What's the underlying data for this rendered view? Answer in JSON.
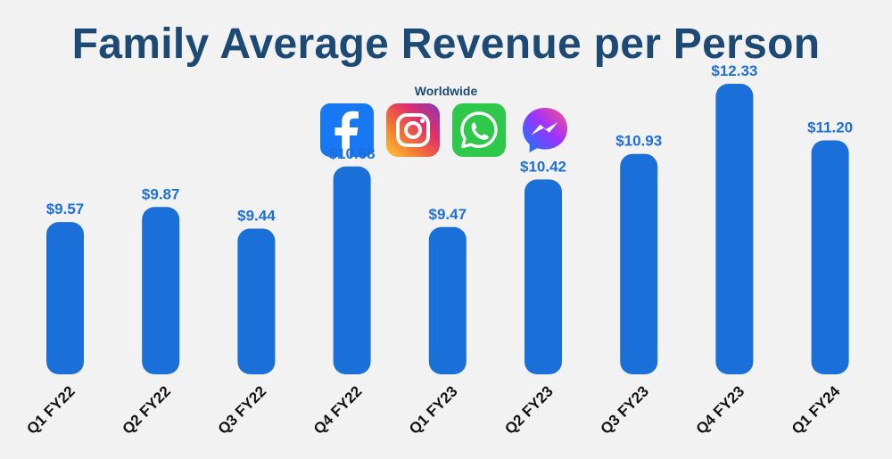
{
  "colors": {
    "bar": "#1a6fd8",
    "value_label": "#1e6fd9",
    "title": "#1c4a74"
  },
  "logos": [
    {
      "icon": "facebook-icon"
    },
    {
      "icon": "instagram-icon"
    },
    {
      "icon": "whatsapp-icon"
    },
    {
      "icon": "messenger-icon"
    }
  ],
  "chart_data": {
    "type": "bar",
    "title": "Family Average Revenue per Person",
    "subtitle": "Worldwide",
    "categories": [
      "Q1 FY22",
      "Q2 FY22",
      "Q3 FY22",
      "Q4 FY22",
      "Q1 FY23",
      "Q2 FY23",
      "Q3 FY23",
      "Q4 FY23",
      "Q1 FY24"
    ],
    "values": [
      9.57,
      9.87,
      9.44,
      10.68,
      9.47,
      10.42,
      10.93,
      12.33,
      11.2
    ],
    "value_labels": [
      "$9.57",
      "$9.87",
      "$9.44",
      "$10.68",
      "$9.47",
      "$10.42",
      "$10.93",
      "$12.33",
      "$11.20"
    ],
    "xlabel": "",
    "ylabel": "",
    "grid": false,
    "legend": "none"
  }
}
